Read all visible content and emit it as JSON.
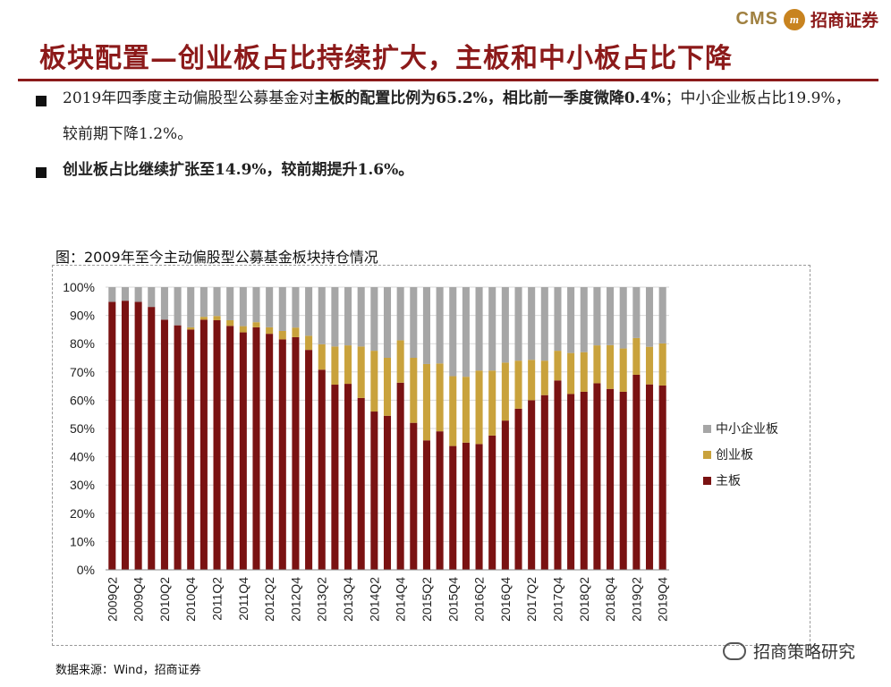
{
  "brand": {
    "cms": "CMS",
    "logo_letter": "m",
    "name": "招商证券"
  },
  "title": "板块配置—创业板占比持续扩大，主板和中小板占比下降",
  "bullets": [
    {
      "pre": "2019年四季度主动偏股型公募基金对",
      "bold": "主板的配置比例为65.2%，相比前一季度微降0.4%",
      "post": "；中小企业板占比19.9%，较前期下降1.2%。"
    },
    {
      "bold": "创业板占比继续扩张至14.9%，较前期提升1.6%。"
    }
  ],
  "chart_title": "图：2009年至今主动偏股型公募基金板块持仓情况",
  "source": "数据来源：Wind，招商证券",
  "watermark": "招商策略研究",
  "colors": {
    "main": "#7a1212",
    "chinext": "#c9a23c",
    "sme": "#a6a6a6",
    "accent": "#8c1a1a"
  },
  "chart_data": {
    "type": "bar",
    "stacked": true,
    "title": "图：2009年至今主动偏股型公募基金板块持仓情况",
    "ylim": [
      0,
      100
    ],
    "yticks": [
      "0%",
      "10%",
      "20%",
      "30%",
      "40%",
      "50%",
      "60%",
      "70%",
      "80%",
      "90%",
      "100%"
    ],
    "categories": [
      "2009Q2",
      "2009Q3",
      "2009Q4",
      "2010Q1",
      "2010Q2",
      "2010Q3",
      "2010Q4",
      "2011Q1",
      "2011Q2",
      "2011Q3",
      "2011Q4",
      "2012Q1",
      "2012Q2",
      "2012Q3",
      "2012Q4",
      "2013Q1",
      "2013Q2",
      "2013Q3",
      "2013Q4",
      "2014Q1",
      "2014Q2",
      "2014Q3",
      "2014Q4",
      "2015Q1",
      "2015Q2",
      "2015Q3",
      "2015Q4",
      "2016Q1",
      "2016Q2",
      "2016Q3",
      "2016Q4",
      "2017Q1",
      "2017Q2",
      "2017Q3",
      "2017Q4",
      "2018Q1",
      "2018Q2",
      "2018Q3",
      "2018Q4",
      "2019Q1",
      "2019Q2",
      "2019Q3",
      "2019Q4"
    ],
    "xtick_labels": [
      "2009Q2",
      "",
      "2009Q4",
      "",
      "2010Q2",
      "",
      "2010Q4",
      "",
      "2011Q2",
      "",
      "2011Q4",
      "",
      "2012Q2",
      "",
      "2012Q4",
      "",
      "2013Q2",
      "",
      "2013Q4",
      "",
      "2014Q2",
      "",
      "2014Q4",
      "",
      "2015Q2",
      "",
      "2015Q4",
      "",
      "2016Q2",
      "",
      "2016Q4",
      "",
      "2017Q2",
      "",
      "2017Q4",
      "",
      "2018Q2",
      "",
      "2018Q4",
      "",
      "2019Q2",
      "",
      "2019Q4"
    ],
    "series": [
      {
        "name": "主板",
        "values": [
          94.8,
          95.2,
          94.8,
          93.0,
          88.5,
          86.5,
          85.0,
          88.5,
          88.3,
          86.3,
          84.0,
          85.8,
          83.5,
          81.5,
          82.3,
          77.8,
          70.8,
          65.5,
          65.8,
          60.8,
          56.0,
          54.5,
          66.2,
          52.0,
          45.8,
          49.0,
          43.8,
          45.0,
          44.5,
          47.5,
          52.8,
          57.0,
          60.0,
          61.8,
          67.0,
          62.2,
          63.0,
          66.0,
          64.0,
          63.0,
          69.0,
          65.6,
          65.2
        ]
      },
      {
        "name": "创业板",
        "values": [
          0.0,
          0.0,
          0.0,
          0.0,
          0.0,
          0.0,
          0.8,
          1.0,
          1.5,
          2.0,
          2.2,
          1.8,
          2.3,
          3.0,
          3.4,
          5.0,
          9.0,
          13.5,
          13.6,
          18.2,
          21.5,
          20.5,
          15.0,
          23.0,
          27.0,
          24.0,
          24.7,
          23.3,
          26.0,
          23.0,
          20.5,
          17.0,
          14.3,
          12.2,
          10.5,
          14.5,
          14.0,
          13.4,
          15.5,
          15.3,
          13.0,
          13.3,
          14.9
        ]
      },
      {
        "name": "中小企业板",
        "values": [
          5.2,
          4.8,
          5.2,
          7.0,
          11.5,
          13.5,
          14.2,
          10.5,
          10.2,
          11.7,
          13.8,
          12.4,
          14.2,
          15.5,
          14.3,
          17.2,
          20.2,
          21.0,
          20.6,
          21.0,
          22.5,
          25.0,
          18.8,
          25.0,
          27.2,
          27.0,
          31.5,
          31.7,
          29.5,
          29.5,
          26.7,
          26.0,
          25.7,
          26.0,
          22.5,
          23.3,
          23.0,
          20.6,
          20.5,
          21.7,
          18.0,
          21.1,
          19.9
        ]
      }
    ],
    "legend": [
      "中小企业板",
      "创业板",
      "主板"
    ],
    "legend_position": "right"
  }
}
